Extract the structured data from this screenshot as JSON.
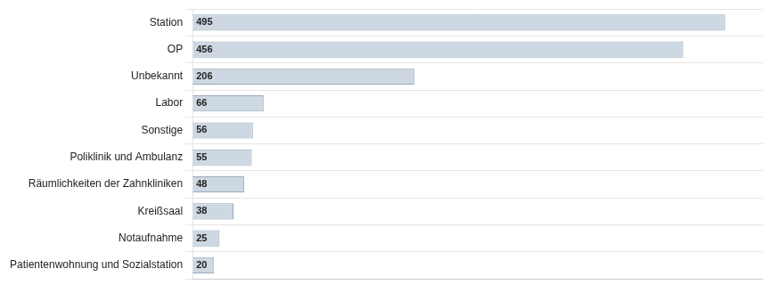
{
  "chart_data": {
    "type": "bar",
    "orientation": "horizontal",
    "categories": [
      "Patientenwohnung und Sozialstation",
      "Notaufnahme",
      "Kreißsaal",
      "Räumlichkeiten der Zahnkliniken",
      "Poliklinik und Ambulanz",
      "Sonstige",
      "Labor",
      "Unbekannt",
      "OP",
      "Station"
    ],
    "values": [
      20,
      25,
      38,
      48,
      55,
      56,
      66,
      206,
      456,
      495
    ],
    "color": "#cdd8e3",
    "xlim": [
      0,
      530
    ],
    "grid": true,
    "data_labels": true,
    "tick_labels": "y"
  }
}
